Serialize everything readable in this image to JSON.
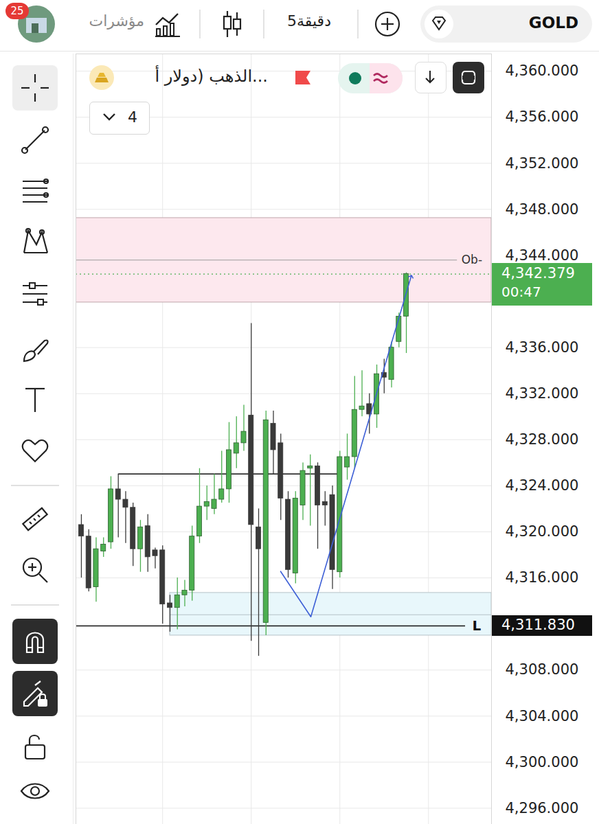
{
  "header": {
    "badge": "25",
    "indicators": "مؤشرات",
    "timeframe": "5دقيقة",
    "symbol": "GOLD"
  },
  "chart_data": {
    "type": "candlestick",
    "title": "الذهب (دولار أ...",
    "dropdown": "4",
    "x": [
      0,
      1,
      2,
      3,
      4,
      5,
      6,
      7,
      8,
      9,
      10,
      11,
      12,
      13,
      14,
      15,
      16,
      17,
      18,
      19,
      20,
      21,
      22,
      23,
      24,
      25,
      26,
      27,
      28,
      29,
      30,
      31,
      32,
      33,
      34,
      35,
      36,
      37,
      38,
      39,
      40,
      41,
      42,
      43,
      44
    ],
    "open": [
      4320.6,
      4319.6,
      4315.2,
      4318.3,
      4319.1,
      4323.7,
      4322.8,
      4322.1,
      4318.5,
      4320.5,
      4318.4,
      4318.4,
      4313.8,
      4313.4,
      4314.5,
      4314.9,
      4319.6,
      4322.2,
      4322.0,
      4322.8,
      4323.7,
      4326.8,
      4327.7,
      4330.1,
      4320.4,
      4312.1,
      4329.4,
      4327.7,
      4322.8,
      4316.4,
      4322.3,
      4325.5,
      4325.7,
      4322.6,
      4323.2,
      4316.5,
      4325.6,
      4326.5,
      4330.6,
      4331.1,
      4330.2,
      4333.8,
      4333.2,
      4336.5,
      4338.7
    ],
    "high": [
      4321.5,
      4320.2,
      4319.5,
      4319.5,
      4324.8,
      4325.0,
      4323.5,
      4322.5,
      4321.0,
      4321.5,
      4318.6,
      4318.8,
      4314.5,
      4316.0,
      4315.8,
      4320.5,
      4325.5,
      4324.0,
      4325.0,
      4327.0,
      4329.5,
      4330.0,
      4331.0,
      4338.1,
      4322.0,
      4330.5,
      4330.5,
      4328.5,
      4323.5,
      4323.5,
      4326.0,
      4326.7,
      4326.0,
      4323.5,
      4324.0,
      4327.0,
      4328.5,
      4333.5,
      4334.0,
      4332.0,
      4334.5,
      4335.0,
      4336.5,
      4339.0,
      4342.5
    ],
    "low": [
      4316.0,
      4314.8,
      4313.9,
      4317.8,
      4318.5,
      4319.5,
      4319.0,
      4317.0,
      4316.5,
      4316.5,
      4316.8,
      4312.0,
      4311.3,
      4311.5,
      4313.5,
      4314.0,
      4319.0,
      4321.0,
      4321.5,
      4322.5,
      4322.5,
      4325.5,
      4327.0,
      4310.5,
      4309.2,
      4311.0,
      4325.0,
      4321.0,
      4316.0,
      4315.5,
      4321.0,
      4320.5,
      4318.5,
      4320.5,
      4315.0,
      4316.0,
      4324.5,
      4325.5,
      4330.0,
      4328.5,
      4329.0,
      4332.0,
      4332.5,
      4336.0,
      4335.5
    ],
    "close": [
      4319.6,
      4315.1,
      4318.5,
      4318.9,
      4323.7,
      4322.8,
      4322.1,
      4318.5,
      4320.4,
      4317.8,
      4317.9,
      4313.7,
      4313.4,
      4314.5,
      4314.9,
      4319.6,
      4322.2,
      4322.6,
      4322.8,
      4323.7,
      4327.1,
      4327.7,
      4328.7,
      4320.6,
      4318.5,
      4329.7,
      4327.1,
      4322.9,
      4316.7,
      4322.9,
      4325.3,
      4325.7,
      4322.3,
      4322.3,
      4316.7,
      4326.5,
      4326.5,
      4330.6,
      4330.9,
      4330.2,
      4333.7,
      4333.4,
      4336.0,
      4338.7,
      4342.4
    ],
    "color": {
      "up": "#4caf50",
      "down": "#3a3a3a"
    },
    "xlim": [
      -0.74,
      55.53
    ],
    "xticks": [
      11,
      23,
      35,
      47
    ],
    "ylim": [
      4294.6,
      4361.5
    ],
    "yticks": [
      {
        "value": 4296,
        "label": "4,296.000"
      },
      {
        "value": 4300,
        "label": "4,300.000"
      },
      {
        "value": 4304,
        "label": "4,304.000"
      },
      {
        "value": 4308,
        "label": "4,308.000"
      },
      {
        "value": 4316,
        "label": "4,316.000"
      },
      {
        "value": 4320,
        "label": "4,320.000"
      },
      {
        "value": 4324,
        "label": "4,324.000"
      },
      {
        "value": 4328,
        "label": "4,328.000"
      },
      {
        "value": 4332,
        "label": "4,332.000"
      },
      {
        "value": 4336,
        "label": "4,336.000"
      },
      {
        "value": 4344,
        "label": "4,344.000"
      },
      {
        "value": 4348,
        "label": "4,348.000"
      },
      {
        "value": 4352,
        "label": "4,352.000"
      },
      {
        "value": 4356,
        "label": "4,356.000"
      },
      {
        "value": 4360,
        "label": "4,360.000"
      }
    ],
    "grid": true,
    "tick_labels": "y",
    "annotations": {
      "order_block_zone": {
        "x1": -0.74,
        "x2": 55.53,
        "y1": 4339.92,
        "y2": 4347.25
      },
      "order_block_level": {
        "label": "Ob-",
        "y": 4343.6,
        "x1": -0.74,
        "x2": 50.9
      },
      "demand_zone": {
        "x1": 12,
        "x2": 55.53,
        "y1": 4311.0,
        "y2": 4314.7,
        "mid": 4312.8
      },
      "liquidity_level": {
        "label": "L",
        "y": 4311.83,
        "x1": -0.74,
        "x2": 52.0,
        "price_label": "4,311.830"
      },
      "structure_level": {
        "y": 4325.02,
        "x1": 5,
        "x2": 35
      },
      "current_price": {
        "value": 4342.379,
        "label": "4,342.379",
        "timer": "00:47"
      },
      "swing_path": {
        "x": [
          26.98,
          31.07,
          44.65
        ],
        "y": [
          4316.56,
          4312.62,
          4342.18
        ]
      }
    }
  }
}
